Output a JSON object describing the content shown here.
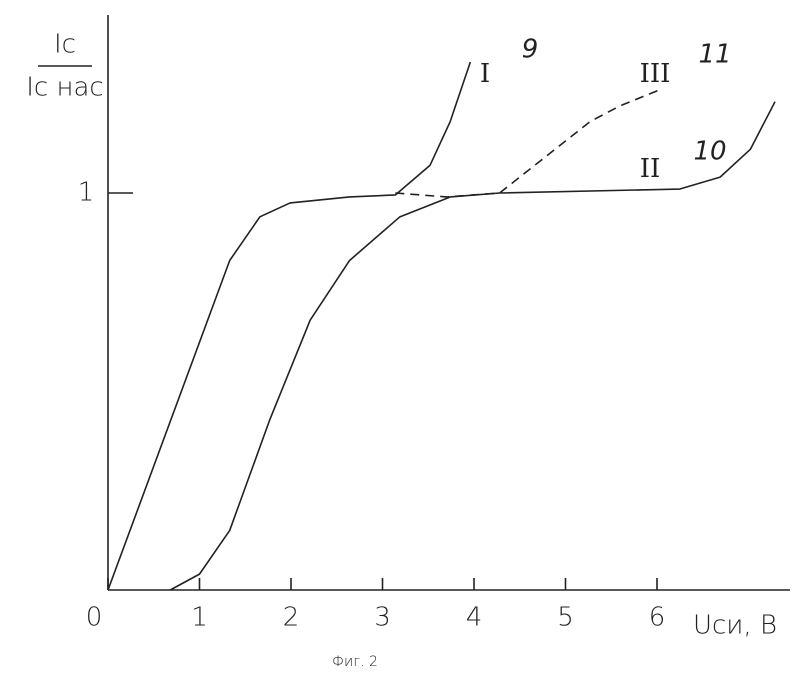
{
  "chart_data": {
    "type": "line",
    "y_label_top": "Ic",
    "y_label_bottom": "Ic нас",
    "x_label": "Uси, В",
    "caption": "Фиг. 2",
    "color": "#222222",
    "series": [
      {
        "name": "I",
        "number": "9",
        "dash": false,
        "x": [
          0,
          1.33,
          1.66,
          1.99,
          2.64,
          3.14,
          3.52,
          3.74,
          3.96
        ],
        "values": [
          0,
          0.83,
          0.94,
          0.975,
          0.99,
          0.995,
          1.07,
          1.18,
          1.33
        ]
      },
      {
        "name": "II",
        "number": "10",
        "dash": false,
        "x": [
          0.68,
          1.0,
          1.33,
          1.77,
          2.21,
          2.64,
          3.19,
          3.74,
          4.28,
          6.25,
          6.69,
          7.02,
          7.29
        ],
        "values": [
          0,
          0.04,
          0.15,
          0.43,
          0.68,
          0.83,
          0.94,
          0.99,
          1.0,
          1.01,
          1.04,
          1.11,
          1.23
        ]
      },
      {
        "name": "III",
        "number": "11",
        "dash": true,
        "x": [
          3.14,
          3.7,
          4.28,
          4.72,
          5.27,
          5.6,
          6.03
        ],
        "values": [
          1.0,
          0.99,
          1.0,
          1.08,
          1.18,
          1.22,
          1.26
        ]
      }
    ],
    "xlim": [
      0,
      7.3
    ],
    "ylim": [
      0,
      1.42
    ],
    "xticks": [
      0,
      1,
      2,
      3,
      4,
      5,
      6
    ],
    "yticks": [
      1
    ]
  }
}
